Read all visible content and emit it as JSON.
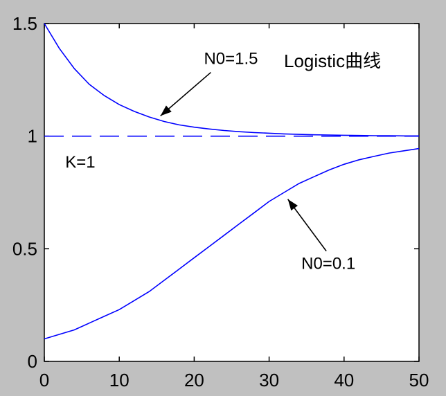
{
  "chart_data": {
    "type": "line",
    "title": "Logistic曲线",
    "xlabel": "",
    "ylabel": "",
    "xlim": [
      0,
      50
    ],
    "ylim": [
      0,
      1.5
    ],
    "xticks": [
      0,
      10,
      20,
      30,
      40,
      50
    ],
    "yticks": [
      0,
      0.5,
      1,
      1.5
    ],
    "x_tick_labels": [
      "0",
      "10",
      "20",
      "30",
      "40",
      "50"
    ],
    "y_tick_labels": [
      "0",
      "0.5",
      "1",
      "1.5"
    ],
    "grid": false,
    "series": [
      {
        "curve": "N0=1.5",
        "style": "solid",
        "color": "#0000ff",
        "x": [
          0,
          2,
          4,
          6,
          8,
          10,
          12,
          14,
          16,
          18,
          20,
          22,
          24,
          26,
          28,
          30,
          32,
          34,
          36,
          38,
          40,
          42,
          44,
          46,
          48,
          50
        ],
        "y": [
          1.5,
          1.39,
          1.3,
          1.23,
          1.18,
          1.14,
          1.11,
          1.085,
          1.065,
          1.05,
          1.04,
          1.032,
          1.025,
          1.02,
          1.016,
          1.013,
          1.01,
          1.008,
          1.006,
          1.005,
          1.004,
          1.003,
          1.002,
          1.002,
          1.001,
          1.001
        ]
      },
      {
        "curve": "N0=0.1",
        "style": "solid",
        "color": "#0000ff",
        "x": [
          0,
          2,
          4,
          6,
          8,
          10,
          12,
          14,
          16,
          18,
          20,
          22,
          24,
          26,
          28,
          30,
          32,
          34,
          36,
          38,
          40,
          42,
          44,
          46,
          48,
          50
        ],
        "y": [
          0.1,
          0.12,
          0.14,
          0.17,
          0.2,
          0.23,
          0.27,
          0.31,
          0.36,
          0.41,
          0.46,
          0.51,
          0.56,
          0.61,
          0.66,
          0.71,
          0.75,
          0.79,
          0.82,
          0.85,
          0.875,
          0.895,
          0.91,
          0.925,
          0.935,
          0.945
        ]
      },
      {
        "curve": "K",
        "style": "dashed",
        "color": "#0000ff",
        "x": [
          0,
          50
        ],
        "y": [
          1,
          1
        ]
      }
    ],
    "annotations": [
      {
        "text": "N0=1.5",
        "x": 21.3,
        "y": 1.32,
        "arrow_to": [
          15.5,
          1.09
        ]
      },
      {
        "text": "N0=0.1",
        "x": 34.3,
        "y": 0.41,
        "arrow_to": [
          32.5,
          0.72
        ]
      },
      {
        "text": "K=1",
        "x": 2.8,
        "y": 0.86
      }
    ],
    "colors": {
      "background": "#c0c0c0",
      "plot_area": "#ffffff",
      "line": "#0000ff",
      "axis": "#000000"
    }
  }
}
